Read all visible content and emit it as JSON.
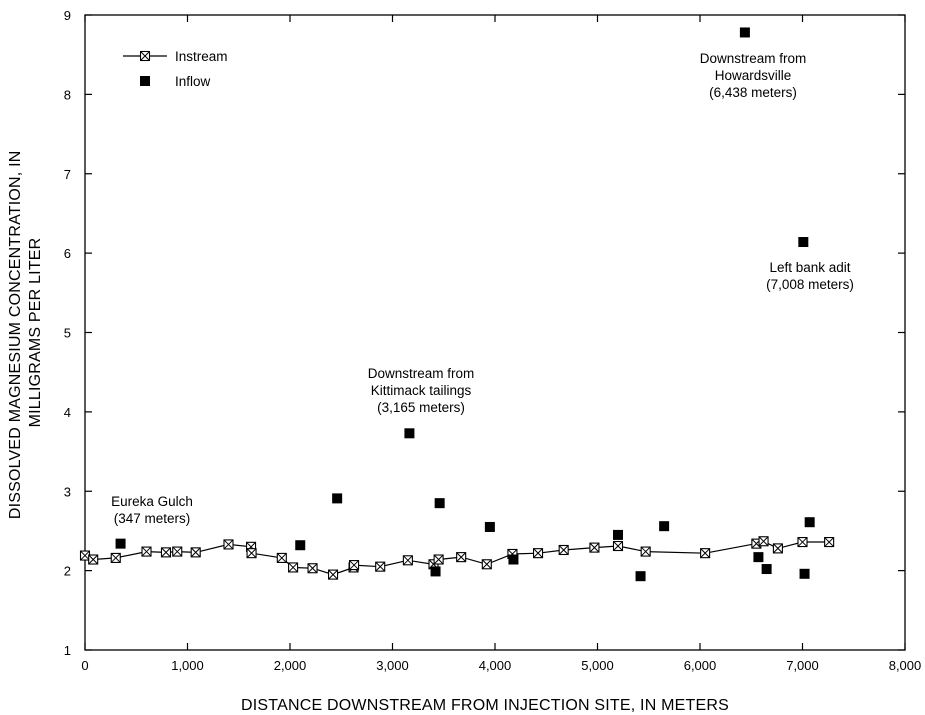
{
  "chart_data": {
    "type": "scatter",
    "title": "",
    "xlabel": "DISTANCE DOWNSTREAM FROM INJECTION SITE, IN METERS",
    "ylabel_lines": [
      "DISSOLVED MAGNESIUM CONCENTRATION, IN",
      "MILLIGRAMS PER LITER"
    ],
    "xlim": [
      0,
      8000
    ],
    "ylim": [
      1,
      9
    ],
    "x_ticks": [
      0,
      1000,
      2000,
      3000,
      4000,
      5000,
      6000,
      7000,
      8000
    ],
    "x_tick_labels": [
      "0",
      "1,000",
      "2,000",
      "3,000",
      "4,000",
      "5,000",
      "6,000",
      "7,000",
      "8,000"
    ],
    "y_ticks": [
      1,
      2,
      3,
      4,
      5,
      6,
      7,
      8,
      9
    ],
    "y_tick_labels": [
      "1",
      "2",
      "3",
      "4",
      "5",
      "6",
      "7",
      "8",
      "9"
    ],
    "grid": false,
    "legend_position": "top-left",
    "series": [
      {
        "name": "Instream",
        "marker": "boxed-x",
        "line": true,
        "points": [
          [
            0,
            2.19
          ],
          [
            80,
            2.14
          ],
          [
            300,
            2.16
          ],
          [
            600,
            2.24
          ],
          [
            790,
            2.23
          ],
          [
            900,
            2.24
          ],
          [
            1080,
            2.23
          ],
          [
            1400,
            2.33
          ],
          [
            1620,
            2.3
          ],
          [
            1625,
            2.22
          ],
          [
            1920,
            2.16
          ],
          [
            2030,
            2.04
          ],
          [
            2220,
            2.03
          ],
          [
            2420,
            1.95
          ],
          [
            2620,
            2.04
          ],
          [
            2625,
            2.07
          ],
          [
            2880,
            2.05
          ],
          [
            3150,
            2.13
          ],
          [
            3400,
            2.08
          ],
          [
            3450,
            2.14
          ],
          [
            3670,
            2.17
          ],
          [
            3920,
            2.08
          ],
          [
            4170,
            2.21
          ],
          [
            4420,
            2.22
          ],
          [
            4670,
            2.26
          ],
          [
            4970,
            2.29
          ],
          [
            5200,
            2.31
          ],
          [
            5470,
            2.24
          ],
          [
            6050,
            2.22
          ],
          [
            6550,
            2.34
          ],
          [
            6620,
            2.37
          ],
          [
            6760,
            2.28
          ],
          [
            7000,
            2.36
          ],
          [
            7260,
            2.36
          ]
        ]
      },
      {
        "name": "Inflow",
        "marker": "filled-square",
        "line": false,
        "points": [
          [
            347,
            2.34
          ],
          [
            2100,
            2.32
          ],
          [
            2460,
            2.91
          ],
          [
            3165,
            3.73
          ],
          [
            3420,
            1.99
          ],
          [
            3460,
            2.85
          ],
          [
            3950,
            2.55
          ],
          [
            4180,
            2.14
          ],
          [
            5200,
            2.45
          ],
          [
            5420,
            1.93
          ],
          [
            5650,
            2.56
          ],
          [
            6438,
            8.78
          ],
          [
            6570,
            2.17
          ],
          [
            6650,
            2.02
          ],
          [
            7008,
            6.14
          ],
          [
            7020,
            1.96
          ],
          [
            7070,
            2.61
          ]
        ]
      }
    ],
    "annotations": [
      {
        "lines": [
          "Eureka Gulch",
          "(347 meters)"
        ],
        "x": 347,
        "y": 2.34
      },
      {
        "lines": [
          "Downstream from",
          "Kittimack tailings",
          "(3,165 meters)"
        ],
        "x": 3165,
        "y": 3.73
      },
      {
        "lines": [
          "Downstream from",
          "Howardsville",
          "(6,438 meters)"
        ],
        "x": 6438,
        "y": 8.78
      },
      {
        "lines": [
          "Left bank adit",
          "(7,008 meters)"
        ],
        "x": 7008,
        "y": 6.14
      }
    ]
  }
}
